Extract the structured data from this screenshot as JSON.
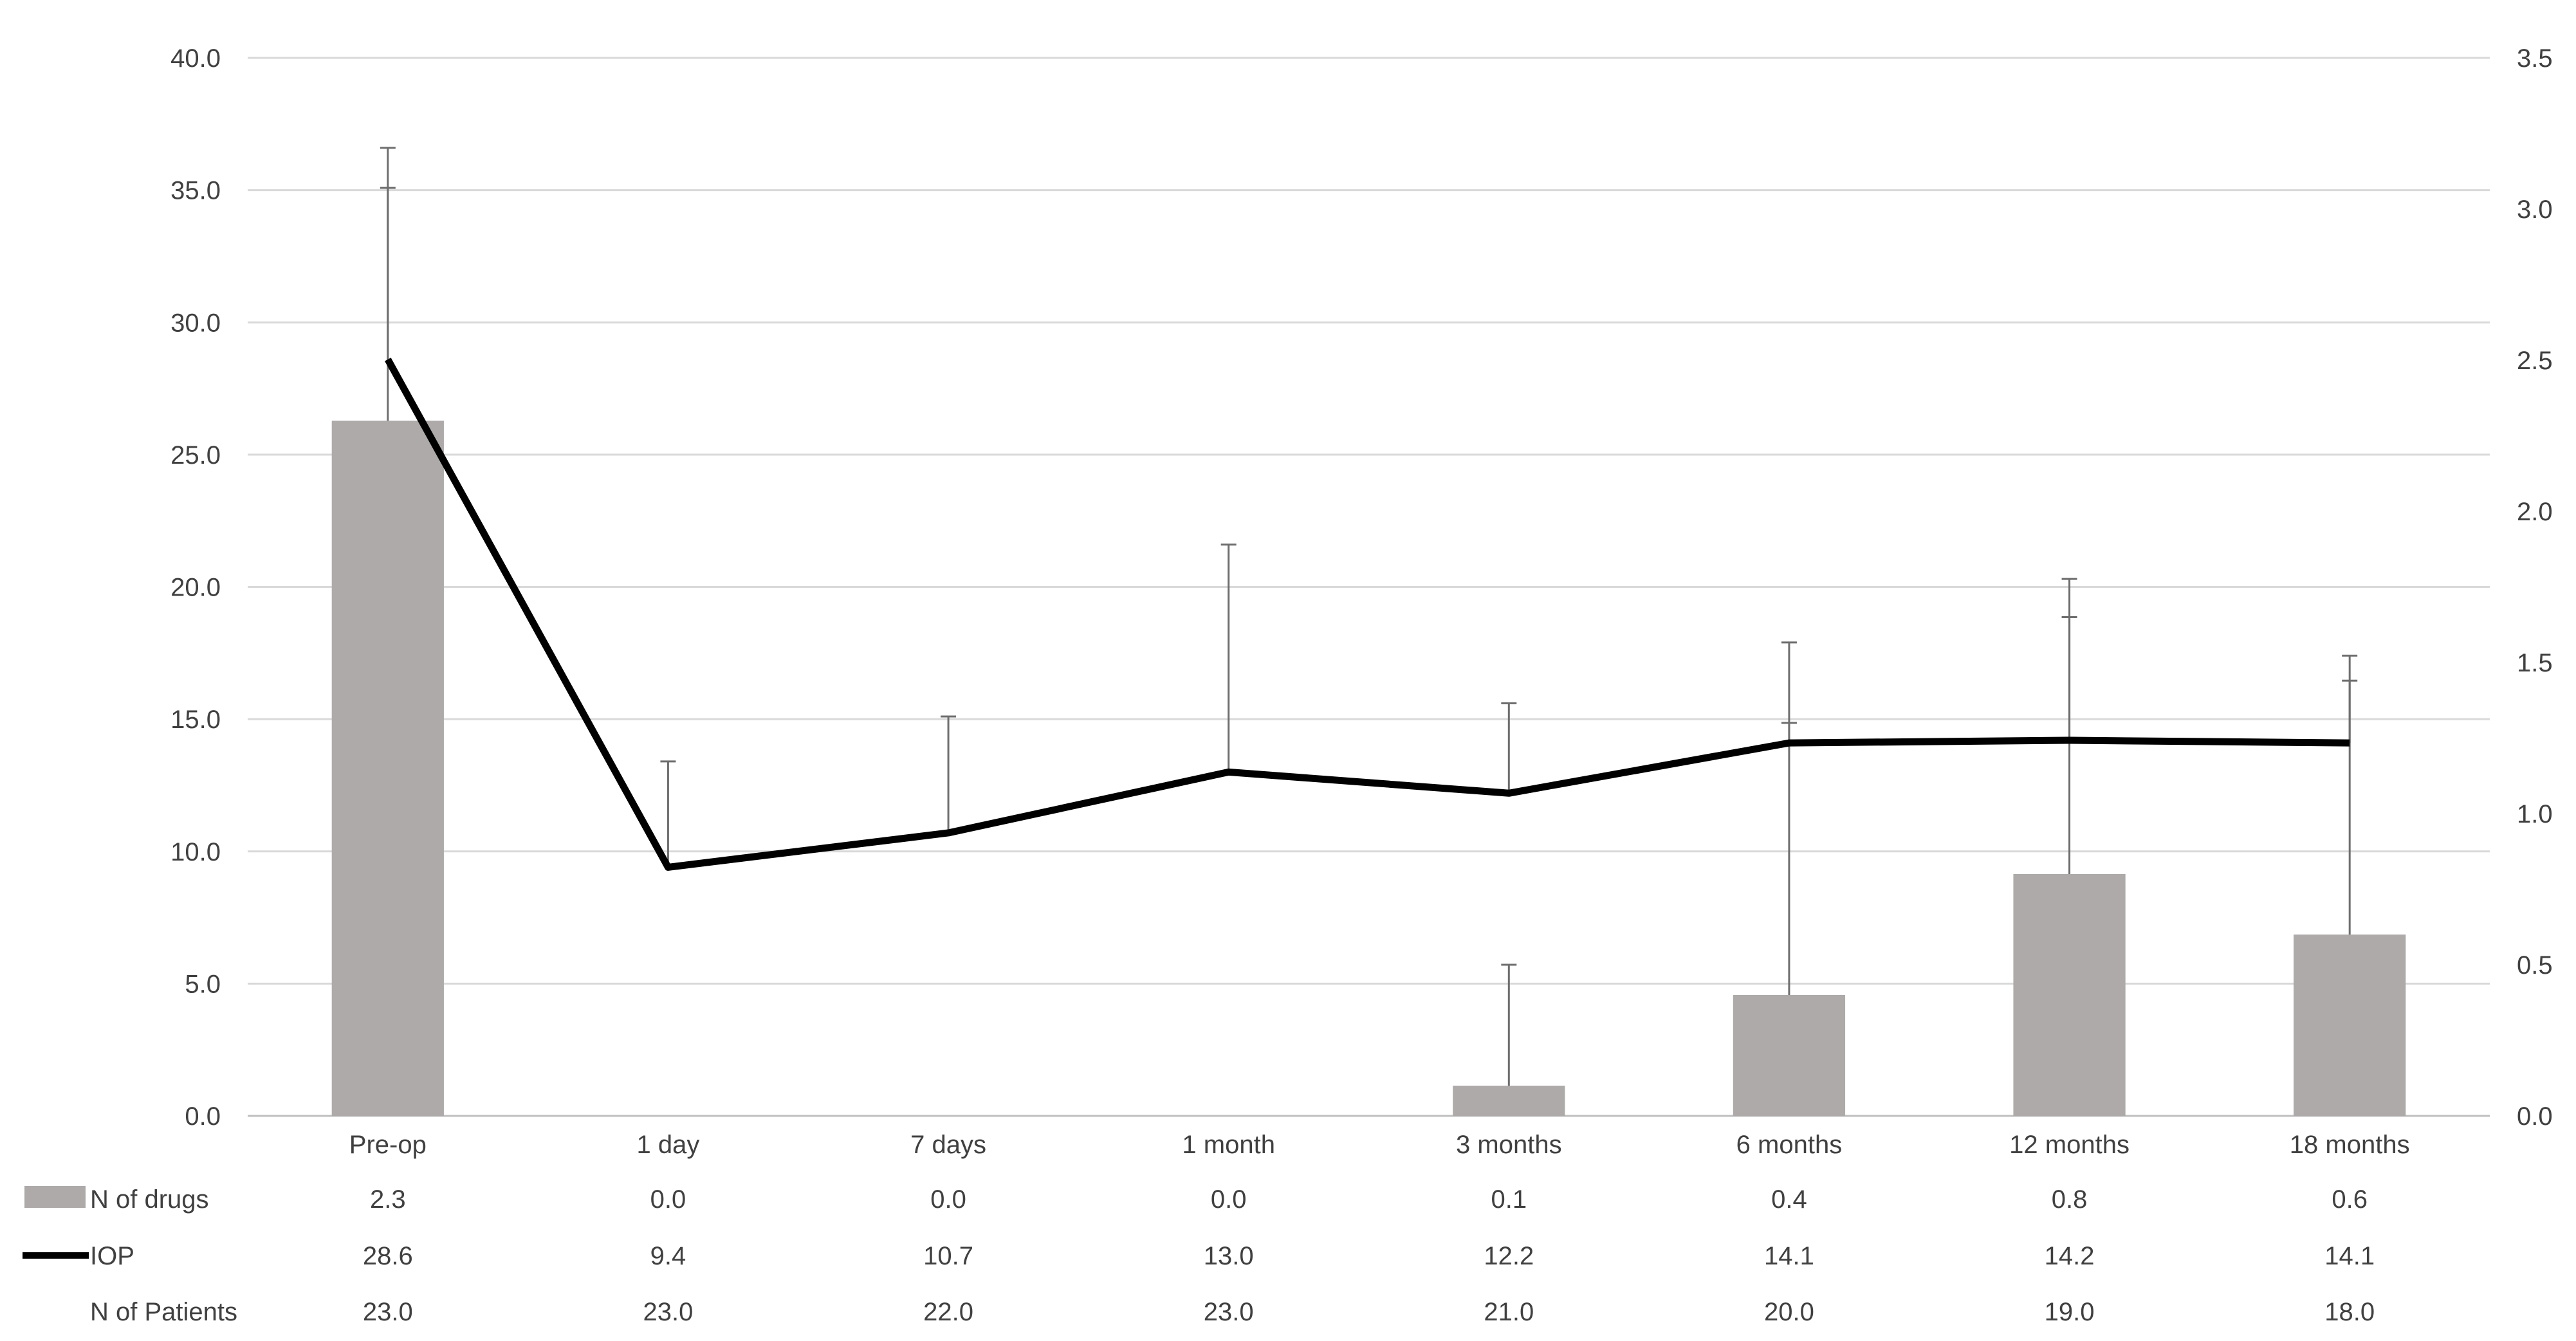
{
  "chart_data": {
    "type": "bar+line",
    "categories": [
      "Pre-op",
      "1 day",
      "7 days",
      "1 month",
      "3 months",
      "6 months",
      "12 months",
      "18 months"
    ],
    "left_axis": {
      "min": 0,
      "max": 40,
      "step": 5,
      "ticks": [
        "0.0",
        "5.0",
        "10.0",
        "15.0",
        "20.0",
        "25.0",
        "30.0",
        "35.0",
        "40.0"
      ]
    },
    "right_axis": {
      "min": 0,
      "max": 3.5,
      "step": 0.5,
      "ticks": [
        "0.0",
        "0.5",
        "1.0",
        "1.5",
        "2.0",
        "2.5",
        "3.0",
        "3.5"
      ]
    },
    "grid": true,
    "bar_color": "#aeaaaa",
    "line_color": "#000000",
    "series": [
      {
        "name": "N of drugs",
        "kind": "bar",
        "axis": "right",
        "values": [
          2.3,
          0.0,
          0.0,
          0.0,
          0.1,
          0.4,
          0.8,
          0.6
        ],
        "error_upper": [
          3.07,
          null,
          null,
          null,
          0.5,
          1.3,
          1.65,
          1.44
        ],
        "labels": [
          "2.3",
          "0.0",
          "0.0",
          "0.0",
          "0.1",
          "0.4",
          "0.8",
          "0.6"
        ]
      },
      {
        "name": "IOP",
        "kind": "line",
        "axis": "left",
        "values": [
          28.6,
          9.4,
          10.7,
          13.0,
          12.2,
          14.1,
          14.2,
          14.1
        ],
        "error_upper": [
          36.6,
          13.4,
          15.1,
          21.6,
          15.6,
          17.9,
          20.3,
          17.4
        ],
        "labels": [
          "28.6",
          "9.4",
          "10.7",
          "13.0",
          "12.2",
          "14.1",
          "14.2",
          "14.1"
        ]
      }
    ],
    "table_rows": [
      {
        "label": "N of drugs",
        "values": [
          "2.3",
          "0.0",
          "0.0",
          "0.0",
          "0.1",
          "0.4",
          "0.8",
          "0.6"
        ]
      },
      {
        "label": "IOP",
        "values": [
          "28.6",
          "9.4",
          "10.7",
          "13.0",
          "12.2",
          "14.1",
          "14.2",
          "14.1"
        ]
      },
      {
        "label": "N of Patients",
        "values": [
          "23.0",
          "23.0",
          "22.0",
          "23.0",
          "21.0",
          "20.0",
          "19.0",
          "18.0"
        ]
      }
    ]
  }
}
